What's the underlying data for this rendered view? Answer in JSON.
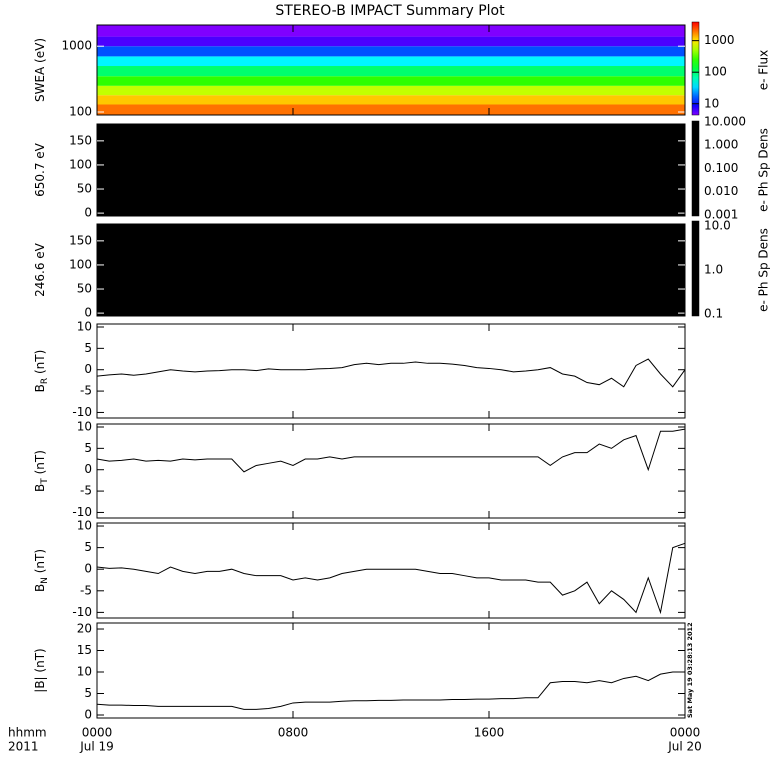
{
  "chart_data": {
    "type": "multi-panel",
    "title": "STEREO-B IMPACT Summary Plot",
    "x_unit_label": "hhmm",
    "year": "2011",
    "start_date": "Jul 19",
    "end_date": "Jul 20",
    "stamp": "Sat May 19 03:28:13 2012",
    "xlim": [
      0,
      24
    ],
    "xticks": [
      {
        "value": 0,
        "label": "0000"
      },
      {
        "value": 8,
        "label": "0800"
      },
      {
        "value": 16,
        "label": "1600"
      },
      {
        "value": 24,
        "label": "0000"
      }
    ],
    "x": [
      0,
      0.5,
      1,
      1.5,
      2,
      2.5,
      3,
      3.5,
      4,
      4.5,
      5,
      5.5,
      6,
      6.5,
      7,
      7.5,
      8,
      8.5,
      9,
      9.5,
      10,
      10.5,
      11,
      11.5,
      12,
      12.5,
      13,
      13.5,
      14,
      14.5,
      15,
      15.5,
      16,
      16.5,
      17,
      17.5,
      18,
      18.5,
      19,
      19.5,
      20,
      20.5,
      21,
      21.5,
      22,
      22.5,
      23,
      23.5,
      24
    ],
    "panels": [
      {
        "type": "spectrogram",
        "ylabel": "SWEA (eV)",
        "log_y": true,
        "ylim": [
          90,
          2100
        ],
        "yticks": [
          100,
          1000
        ],
        "bins": [
          90,
          130,
          180,
          250,
          350,
          500,
          700,
          1000,
          1400,
          2100
        ],
        "values": [
          2000,
          1200,
          600,
          250,
          100,
          40,
          15,
          6,
          3
        ],
        "colormap": "rainbow",
        "clim": [
          4.4,
          3900
        ],
        "cticks": [
          10,
          100,
          1000
        ],
        "clabel": "e- Flux"
      },
      {
        "type": "spectrogram",
        "ylabel": "650.7 eV",
        "ylim": [
          -6,
          185
        ],
        "yticks": [
          0,
          50,
          100,
          150
        ],
        "color": "#000000",
        "clim": [
          0.0009,
          11
        ],
        "cticks": [
          {
            "value": 0.001,
            "label": "0.001"
          },
          {
            "value": 0.01,
            "label": "0.010"
          },
          {
            "value": 0.1,
            "label": "0.100"
          },
          {
            "value": 1,
            "label": "1.000"
          },
          {
            "value": 10,
            "label": "10.000"
          }
        ],
        "clabel": "e- Ph Sp Dens"
      },
      {
        "type": "spectrogram",
        "ylabel": "246.6 eV",
        "ylim": [
          -6,
          185
        ],
        "yticks": [
          0,
          50,
          100,
          150
        ],
        "color": "#000000",
        "clim": [
          0.09,
          13
        ],
        "cticks": [
          {
            "value": 0.1,
            "label": "0.1"
          },
          {
            "value": 1,
            "label": "1.0"
          },
          {
            "value": 10,
            "label": "10.0"
          }
        ],
        "clabel": "e- Ph Sp Dens"
      },
      {
        "type": "line",
        "ylabel": "B",
        "ylabel_sub": "R",
        "ylabel_unit": " (nT)",
        "ylim": [
          -11.3,
          10.7
        ],
        "yticks": [
          -10,
          -5,
          0,
          5,
          10
        ],
        "color": "#000000",
        "values": [
          -1.5,
          -1.2,
          -1,
          -1.3,
          -1,
          -0.5,
          0,
          -0.3,
          -0.5,
          -0.3,
          -0.2,
          0,
          0,
          -0.2,
          0.2,
          0,
          0,
          0,
          0.2,
          0.3,
          0.5,
          1.2,
          1.5,
          1.2,
          1.5,
          1.5,
          1.8,
          1.5,
          1.5,
          1.3,
          1,
          0.5,
          0.3,
          0,
          -0.5,
          -0.3,
          0,
          0.5,
          -1,
          -1.5,
          -3,
          -3.5,
          -2,
          -4,
          1,
          2.5,
          -1,
          -4,
          0
        ]
      },
      {
        "type": "line",
        "ylabel": "B",
        "ylabel_sub": "T",
        "ylabel_unit": " (nT)",
        "ylim": [
          -11.3,
          10.7
        ],
        "yticks": [
          -10,
          -5,
          0,
          5,
          10
        ],
        "color": "#000000",
        "values": [
          2.5,
          2,
          2.2,
          2.5,
          2,
          2.2,
          2,
          2.5,
          2.3,
          2.5,
          2.5,
          2.5,
          -0.5,
          1,
          1.5,
          2,
          1,
          2.5,
          2.5,
          3,
          2.5,
          3,
          3,
          3,
          3,
          3,
          3,
          3,
          3,
          3,
          3,
          3,
          3,
          3,
          3,
          3,
          3,
          1,
          3,
          4,
          4,
          6,
          5,
          7,
          8,
          0,
          9,
          9,
          9.5
        ]
      },
      {
        "type": "line",
        "ylabel": "B",
        "ylabel_sub": "N",
        "ylabel_unit": " (nT)",
        "ylim": [
          -11.3,
          10.7
        ],
        "yticks": [
          -10,
          -5,
          0,
          5,
          10
        ],
        "color": "#000000",
        "values": [
          0.5,
          0.2,
          0.3,
          0,
          -0.5,
          -1,
          0.5,
          -0.5,
          -1,
          -0.5,
          -0.5,
          0,
          -1,
          -1.5,
          -1.5,
          -1.5,
          -2.5,
          -2,
          -2.5,
          -2,
          -1,
          -0.5,
          0,
          0,
          0,
          0,
          0,
          -0.5,
          -1,
          -1,
          -1.5,
          -2,
          -2,
          -2.5,
          -2.5,
          -2.5,
          -3,
          -3,
          -6,
          -5,
          -3,
          -8,
          -5,
          -7,
          -10,
          -2,
          -10,
          5,
          6
        ]
      },
      {
        "type": "line",
        "ylabel": "|B| (nT)",
        "ylim": [
          -0.7,
          21.4
        ],
        "yticks": [
          0,
          5,
          10,
          15,
          20
        ],
        "color": "#000000",
        "values": [
          2.5,
          2.3,
          2.3,
          2.2,
          2.2,
          2,
          2,
          2,
          2,
          2,
          2,
          2,
          1.3,
          1.3,
          1.5,
          2,
          2.8,
          3,
          3,
          3,
          3.2,
          3.3,
          3.3,
          3.4,
          3.4,
          3.5,
          3.5,
          3.5,
          3.5,
          3.6,
          3.6,
          3.7,
          3.7,
          3.8,
          3.8,
          4,
          4,
          7.5,
          7.8,
          7.8,
          7.5,
          8,
          7.5,
          8.5,
          9,
          8,
          9.5,
          10,
          10
        ]
      }
    ]
  }
}
